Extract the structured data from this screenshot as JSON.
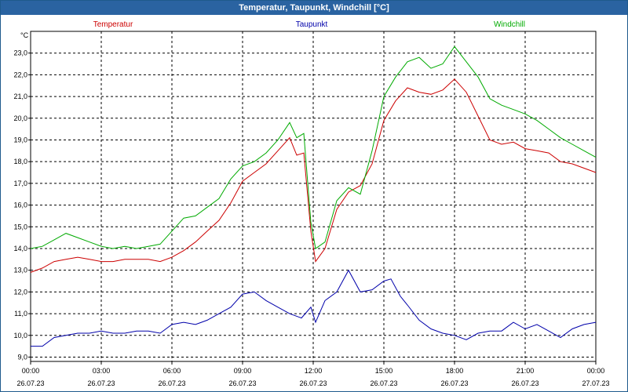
{
  "window": {
    "title": "Temperatur, Taupunkt, Windchill [°C]"
  },
  "chart_data": {
    "type": "line",
    "title": "Temperatur, Taupunkt, Windchill [°C]",
    "ylabel": "°C",
    "xlabel": "",
    "xlim": [
      0,
      24
    ],
    "ylim": [
      8.8,
      24.0
    ],
    "grid": true,
    "y_ticks": [
      "9,0",
      "10,0",
      "11,0",
      "12,0",
      "13,0",
      "14,0",
      "15,0",
      "16,0",
      "17,0",
      "18,0",
      "19,0",
      "20,0",
      "21,0",
      "22,0",
      "23,0"
    ],
    "x_ticks": [
      {
        "time": "00:00",
        "date": "26.07.23"
      },
      {
        "time": "03:00",
        "date": "26.07.23"
      },
      {
        "time": "06:00",
        "date": "26.07.23"
      },
      {
        "time": "09:00",
        "date": "26.07.23"
      },
      {
        "time": "12:00",
        "date": "26.07.23"
      },
      {
        "time": "15:00",
        "date": "26.07.23"
      },
      {
        "time": "18:00",
        "date": "26.07.23"
      },
      {
        "time": "21:00",
        "date": "26.07.23"
      },
      {
        "time": "00:00",
        "date": "27.07.23"
      }
    ],
    "series": [
      {
        "name": "Temperatur",
        "color": "#cc0000",
        "x": [
          0,
          0.5,
          1,
          1.5,
          2,
          2.5,
          3,
          3.5,
          4,
          4.5,
          5,
          5.5,
          6,
          6.5,
          7,
          7.5,
          8,
          8.5,
          9,
          9.5,
          10,
          10.5,
          11,
          11.3,
          11.6,
          11.9,
          12.1,
          12.5,
          13,
          13.5,
          14,
          14.5,
          15,
          15.5,
          16,
          16.5,
          17,
          17.5,
          18,
          18.5,
          19,
          19.5,
          20,
          20.5,
          21,
          21.5,
          22,
          22.5,
          23,
          23.5,
          24
        ],
        "values": [
          12.9,
          13.1,
          13.4,
          13.5,
          13.6,
          13.5,
          13.4,
          13.4,
          13.5,
          13.5,
          13.5,
          13.4,
          13.6,
          13.9,
          14.3,
          14.8,
          15.3,
          16.1,
          17.1,
          17.5,
          17.9,
          18.5,
          19.1,
          18.3,
          18.4,
          14.8,
          13.4,
          14.0,
          15.8,
          16.6,
          16.9,
          17.9,
          19.9,
          20.8,
          21.4,
          21.2,
          21.1,
          21.3,
          21.8,
          21.2,
          20.1,
          19.0,
          18.8,
          18.9,
          18.6,
          18.5,
          18.4,
          18.0,
          17.9,
          17.7,
          17.5
        ]
      },
      {
        "name": "Taupunkt",
        "color": "#0000aa",
        "x": [
          0,
          0.5,
          1,
          1.5,
          2,
          2.5,
          3,
          3.5,
          4,
          4.5,
          5,
          5.5,
          6,
          6.5,
          7,
          7.5,
          8,
          8.5,
          9,
          9.5,
          10,
          10.5,
          11,
          11.5,
          11.9,
          12.1,
          12.5,
          13,
          13.5,
          14,
          14.5,
          15,
          15.3,
          15.7,
          16,
          16.5,
          17,
          17.5,
          18,
          18.5,
          19,
          19.5,
          20,
          20.5,
          21,
          21.5,
          22,
          22.5,
          23,
          23.5,
          24
        ],
        "values": [
          9.5,
          9.5,
          9.9,
          10.0,
          10.1,
          10.1,
          10.2,
          10.1,
          10.1,
          10.2,
          10.2,
          10.1,
          10.5,
          10.6,
          10.5,
          10.7,
          11.0,
          11.3,
          11.9,
          12.0,
          11.6,
          11.3,
          11.0,
          10.8,
          11.3,
          10.6,
          11.6,
          12.0,
          13.0,
          12.0,
          12.1,
          12.5,
          12.6,
          11.8,
          11.4,
          10.7,
          10.3,
          10.1,
          10.0,
          9.8,
          10.1,
          10.2,
          10.2,
          10.6,
          10.3,
          10.5,
          10.2,
          9.9,
          10.3,
          10.5,
          10.6
        ]
      },
      {
        "name": "Windchill",
        "color": "#00aa00",
        "x": [
          0,
          0.5,
          1,
          1.5,
          2,
          2.5,
          3,
          3.5,
          4,
          4.5,
          5,
          5.5,
          6,
          6.5,
          7,
          7.5,
          8,
          8.5,
          9,
          9.5,
          10,
          10.5,
          11,
          11.3,
          11.6,
          11.9,
          12.1,
          12.5,
          13,
          13.5,
          14,
          14.5,
          15,
          15.5,
          16,
          16.5,
          17,
          17.5,
          18,
          18.5,
          19,
          19.5,
          20,
          20.5,
          21,
          21.5,
          22,
          22.5,
          23,
          23.5,
          24
        ],
        "values": [
          14.0,
          14.1,
          14.4,
          14.7,
          14.5,
          14.3,
          14.1,
          14.0,
          14.1,
          14.0,
          14.1,
          14.2,
          14.8,
          15.4,
          15.5,
          15.9,
          16.3,
          17.2,
          17.8,
          18.0,
          18.4,
          19.0,
          19.8,
          19.1,
          19.3,
          15.2,
          14.0,
          14.3,
          16.2,
          16.8,
          16.5,
          18.5,
          21.0,
          21.9,
          22.6,
          22.8,
          22.3,
          22.5,
          23.3,
          22.6,
          21.9,
          20.9,
          20.6,
          20.4,
          20.2,
          19.9,
          19.5,
          19.1,
          18.8,
          18.5,
          18.2
        ]
      }
    ]
  }
}
